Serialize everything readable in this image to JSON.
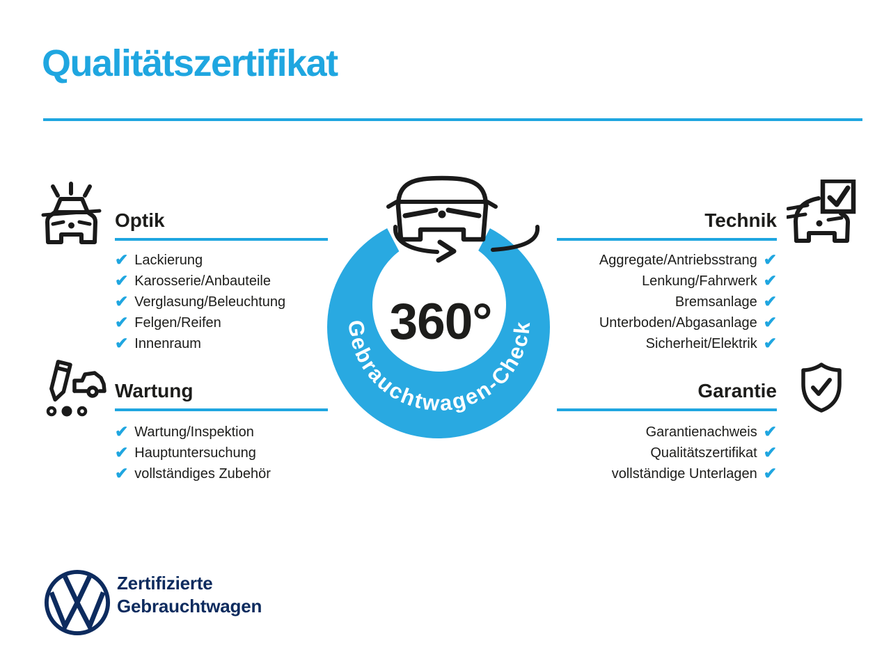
{
  "page": {
    "title": "Qualitätszertifikat"
  },
  "colors": {
    "accent": "#1fa6e0",
    "ring": "#29a9e1",
    "navy": "#0d2b5e",
    "ink": "#1d1d1b",
    "background": "#ffffff"
  },
  "check_glyph": "✔",
  "center": {
    "icon": "car-360-rotation-icon",
    "degrees": "360°",
    "ring_label": "Gebrauchtwagen-Check"
  },
  "sections": [
    {
      "label": "Optik",
      "side": "left",
      "icon": "car-shine-icon",
      "items": [
        "Lackierung",
        "Karosserie/Anbauteile",
        "Verglasung/Beleuchtung",
        "Felgen/Reifen",
        "Innenraum"
      ]
    },
    {
      "label": "Wartung",
      "side": "left",
      "icon": "pencil-service-car-icon",
      "items": [
        "Wartung/Inspektion",
        "Hauptuntersuchung",
        "vollständiges Zubehör"
      ]
    },
    {
      "label": "Technik",
      "side": "right",
      "icon": "car-checkbox-icon",
      "items": [
        "Aggregate/Antriebsstrang",
        "Lenkung/Fahrwerk",
        "Bremsanlage",
        "Unterboden/Abgasanlage",
        "Sicherheit/Elektrik"
      ]
    },
    {
      "label": "Garantie",
      "side": "right",
      "icon": "shield-check-icon",
      "items": [
        "Garantienachweis",
        "Qualitätszertifikat",
        "vollständige Unterlagen"
      ]
    }
  ],
  "footer": {
    "logo": "vw-logo",
    "line1": "Zertifizierte",
    "line2": "Gebrauchtwagen"
  }
}
